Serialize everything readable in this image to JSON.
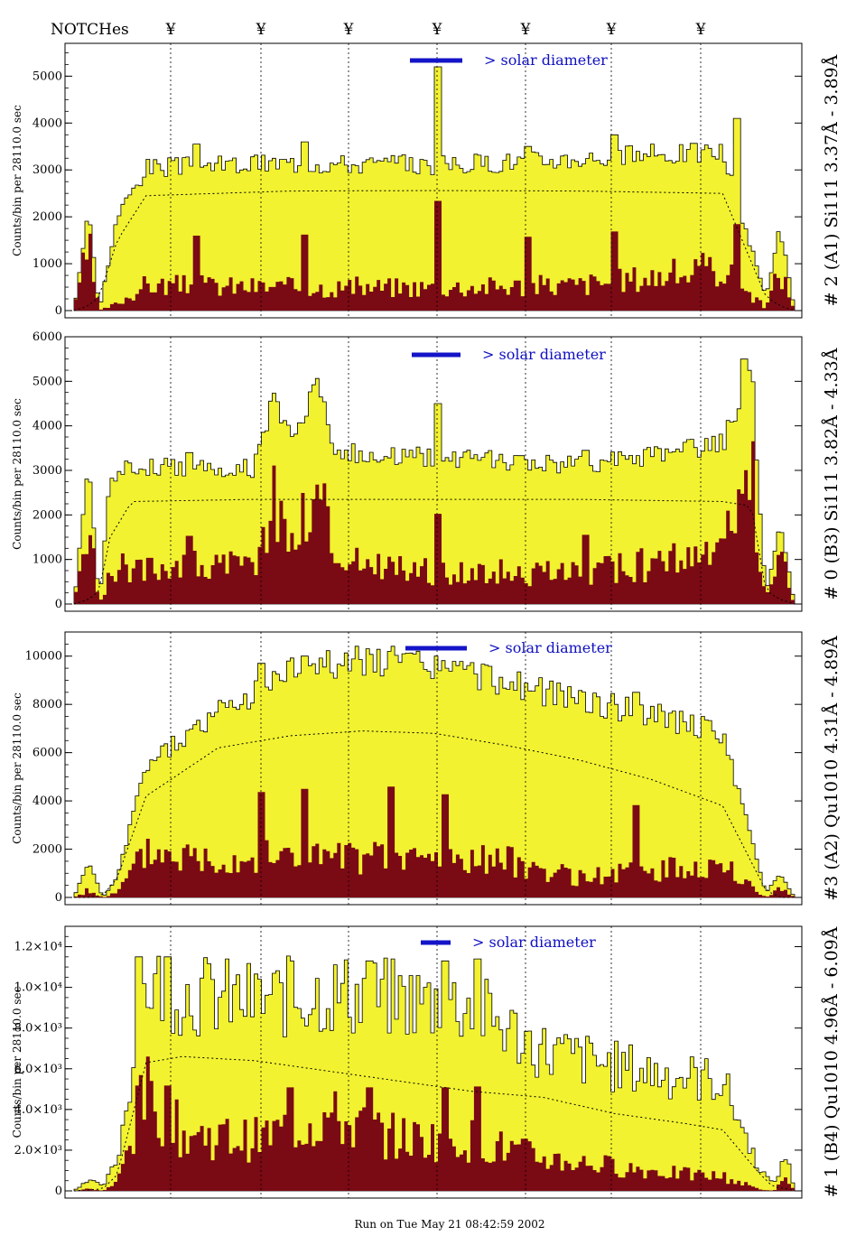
{
  "header": {
    "notches_label": "NOTCHes",
    "notch_symbol": "¥",
    "notch_count": 7
  },
  "footer": {
    "run_label": "Run on Tue May 21 08:42:59 2002"
  },
  "colors": {
    "fill": "#f2f230",
    "dark": "#7a0a14",
    "marker": "#1414c8",
    "outline": "#000000"
  },
  "chart_data": [
    {
      "type": "area",
      "title": "# 2 (A1) Si111  3.37Å - 3.89Å",
      "ylabel": "Counts/bin per  28110.0 sec",
      "annotation": "> solar diameter",
      "ylim": [
        0,
        5700
      ],
      "ytick_values": [
        0,
        1000,
        2000,
        3000,
        4000,
        5000
      ],
      "ytick_labels": [
        "0",
        "1000",
        "2000",
        "3000",
        "4000",
        "5000"
      ],
      "x": [
        0,
        0.02,
        0.035,
        0.06,
        0.1,
        0.3,
        0.5,
        0.7,
        0.9,
        0.96,
        0.98,
        1
      ],
      "total": [
        0,
        2200,
        0,
        2000,
        3050,
        3150,
        3100,
        3250,
        3400,
        300,
        1800,
        0
      ],
      "dark": [
        0,
        1400,
        0,
        150,
        550,
        500,
        500,
        550,
        900,
        50,
        900,
        0
      ],
      "dashed": [
        0,
        100,
        300,
        1500,
        2450,
        2550,
        2560,
        2550,
        2500,
        300,
        100,
        0
      ],
      "peaks": [
        [
          0.17,
          3550
        ],
        [
          0.32,
          3600
        ],
        [
          0.505,
          5200
        ],
        [
          0.63,
          3500
        ],
        [
          0.75,
          3750
        ],
        [
          0.92,
          4100
        ]
      ]
    },
    {
      "type": "area",
      "title": "# 0 (B3) Si111  3.82Å - 4.33Å",
      "ylabel": "Counts/bin per  28110.0 sec",
      "annotation": "> solar diameter",
      "ylim": [
        0,
        6000
      ],
      "ytick_values": [
        0,
        1000,
        2000,
        3000,
        4000,
        5000,
        6000
      ],
      "ytick_labels": [
        "0",
        "1000",
        "2000",
        "3000",
        "4000",
        "5000",
        "6000"
      ],
      "x": [
        0,
        0.02,
        0.035,
        0.05,
        0.08,
        0.25,
        0.28,
        0.3,
        0.34,
        0.36,
        0.4,
        0.5,
        0.7,
        0.9,
        0.94,
        0.96,
        0.98,
        1
      ],
      "total": [
        0,
        3300,
        0,
        2800,
        3100,
        3050,
        4700,
        3800,
        4900,
        3500,
        3300,
        3300,
        3100,
        3600,
        5400,
        200,
        1800,
        0
      ],
      "dark": [
        0,
        1800,
        0,
        700,
        900,
        800,
        2400,
        1200,
        2600,
        1100,
        900,
        700,
        700,
        1100,
        3100,
        50,
        1200,
        0
      ],
      "dashed": [
        0,
        100,
        300,
        1500,
        2300,
        2350,
        2350,
        2350,
        2350,
        2350,
        2350,
        2350,
        2350,
        2300,
        2200,
        300,
        100,
        0
      ],
      "peaks": [
        [
          0.16,
          3400
        ],
        [
          0.505,
          4500
        ],
        [
          0.71,
          3450
        ],
        [
          0.93,
          5500
        ]
      ]
    },
    {
      "type": "area",
      "title": "#3 (A2) Qu1010  4.31Å - 4.89Å",
      "ylabel": "Counts/bin per  28110.0 sec",
      "annotation": "> solar diameter",
      "ylim": [
        0,
        11000
      ],
      "ytick_values": [
        0,
        2000,
        4000,
        6000,
        8000,
        10000
      ],
      "ytick_labels": [
        "0",
        "2000",
        "4000",
        "6000",
        "8000",
        "10000"
      ],
      "x": [
        0,
        0.02,
        0.04,
        0.06,
        0.1,
        0.2,
        0.3,
        0.4,
        0.5,
        0.6,
        0.7,
        0.8,
        0.9,
        0.96,
        0.98,
        1
      ],
      "total": [
        0,
        1500,
        0,
        800,
        5500,
        7600,
        9400,
        9900,
        9600,
        8900,
        8200,
        7600,
        6800,
        200,
        1000,
        0
      ],
      "dark": [
        0,
        300,
        0,
        200,
        1900,
        1600,
        1700,
        1600,
        1600,
        1500,
        800,
        1100,
        1300,
        0,
        400,
        0
      ],
      "dashed": [
        0,
        0,
        100,
        800,
        4200,
        6200,
        6700,
        6900,
        6800,
        6300,
        5700,
        4900,
        3800,
        300,
        0,
        0
      ],
      "peaks": [
        [
          0.26,
          9700
        ],
        [
          0.32,
          10000
        ],
        [
          0.44,
          10200
        ],
        [
          0.515,
          9500
        ],
        [
          0.78,
          8500
        ]
      ]
    },
    {
      "type": "area",
      "title": "# 1 (B4) Qu1010 4.96Å - 6.09Å",
      "ylabel": "Counts/bin per  28110.0 sec",
      "annotation": "> solar diameter",
      "ylim": [
        0,
        13000
      ],
      "ytick_values": [
        0,
        2000,
        4000,
        6000,
        8000,
        10000,
        12000
      ],
      "ytick_labels": [
        "0",
        "2.0×10³",
        "4.0×10³",
        "6.0×10³",
        "8.0×10³",
        "1.0×10⁴",
        "1.2×10⁴"
      ],
      "x": [
        0,
        0.02,
        0.04,
        0.06,
        0.1,
        0.15,
        0.25,
        0.35,
        0.45,
        0.55,
        0.65,
        0.75,
        0.85,
        0.9,
        0.95,
        0.97,
        0.99,
        1
      ],
      "total": [
        0,
        600,
        200,
        1500,
        10200,
        9700,
        9300,
        9700,
        9400,
        9100,
        6900,
        6100,
        5600,
        5400,
        1200,
        300,
        1800,
        0
      ],
      "dark": [
        0,
        100,
        0,
        400,
        4800,
        2800,
        2500,
        3600,
        2600,
        2500,
        1600,
        1200,
        800,
        700,
        100,
        0,
        600,
        0
      ],
      "dashed": [
        0,
        50,
        100,
        800,
        6300,
        6600,
        6400,
        5900,
        5400,
        4900,
        4600,
        3800,
        3300,
        3000,
        900,
        200,
        100,
        0
      ],
      "peaks": [
        [
          0.09,
          11500
        ],
        [
          0.13,
          11500
        ],
        [
          0.3,
          11300
        ],
        [
          0.41,
          11300
        ],
        [
          0.515,
          11300
        ],
        [
          0.56,
          11400
        ]
      ]
    }
  ]
}
